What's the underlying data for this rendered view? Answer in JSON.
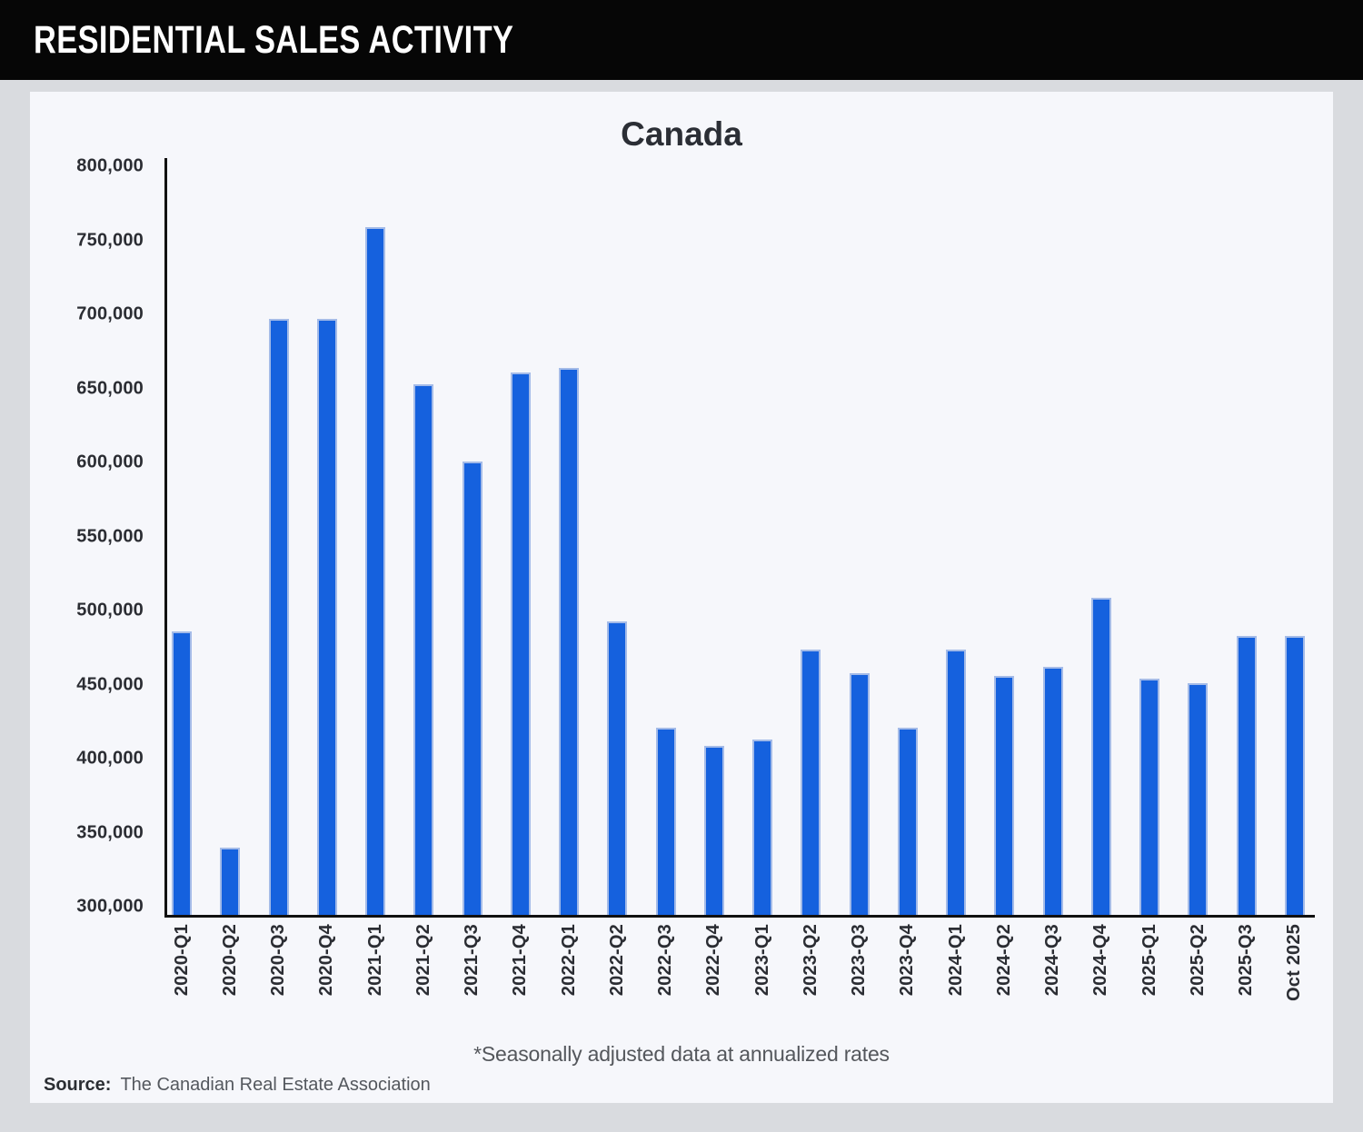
{
  "header": {
    "title": "RESIDENTIAL SALES ACTIVITY"
  },
  "chart_data": {
    "type": "bar",
    "title": "Canada",
    "categories": [
      "2020-Q1",
      "2020-Q2",
      "2020-Q3",
      "2020-Q4",
      "2021-Q1",
      "2021-Q2",
      "2021-Q3",
      "2021-Q4",
      "2022-Q1",
      "2022-Q2",
      "2022-Q3",
      "2022-Q4",
      "2023-Q1",
      "2023-Q2",
      "2023-Q3",
      "2023-Q4",
      "2024-Q1",
      "2024-Q2",
      "2024-Q3",
      "2024-Q4",
      "2025-Q1",
      "2025-Q2",
      "2025-Q3",
      "Oct 2025"
    ],
    "values": [
      486000,
      340000,
      697000,
      697000,
      759000,
      653000,
      601000,
      661000,
      664000,
      493000,
      421000,
      409000,
      413000,
      474000,
      458000,
      421000,
      474000,
      456000,
      462000,
      509000,
      454000,
      451000,
      483000,
      483000
    ],
    "xlabel": "",
    "ylabel": "",
    "ylim": [
      300000,
      800000
    ],
    "yticks": [
      800000,
      750000,
      700000,
      650000,
      600000,
      550000,
      500000,
      450000,
      400000,
      350000,
      300000
    ],
    "grid": false,
    "legend": null,
    "bar_color": "#1561de",
    "bar_border_color": "#a4bbe8"
  },
  "footnote": "*Seasonally adjusted data at annualized rates",
  "source": {
    "label": "Source:",
    "text": "The Canadian Real Estate Association"
  }
}
